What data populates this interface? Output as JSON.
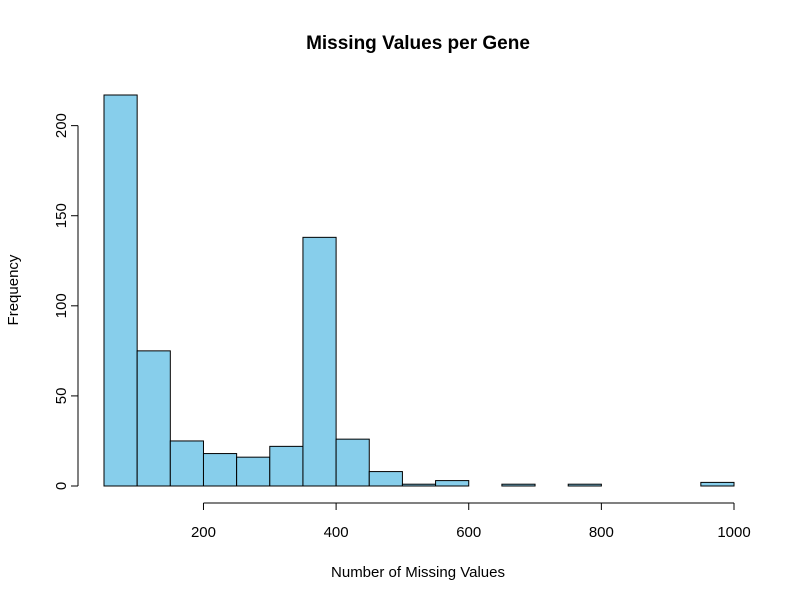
{
  "chart_data": {
    "type": "bar",
    "title": "Missing Values per Gene",
    "xlabel": "Number of Missing Values",
    "ylabel": "Frequency",
    "bar_color": "#87CEEB",
    "bin_edges": [
      50,
      100,
      150,
      200,
      250,
      300,
      350,
      400,
      450,
      500,
      550,
      600,
      650,
      700,
      750,
      800,
      850,
      900,
      950,
      1000
    ],
    "values": [
      217,
      75,
      25,
      18,
      16,
      22,
      138,
      26,
      8,
      1,
      3,
      0,
      1,
      0,
      1,
      0,
      0,
      0,
      2
    ],
    "xlim": [
      50,
      1000
    ],
    "ylim": [
      0,
      217
    ],
    "x_ticks": [
      200,
      400,
      600,
      800,
      1000
    ],
    "y_ticks": [
      0,
      50,
      100,
      150,
      200
    ],
    "x_tick_labels": [
      "200",
      "400",
      "600",
      "800",
      "1000"
    ],
    "y_tick_labels": [
      "0",
      "50",
      "100",
      "150",
      "200"
    ],
    "grid": false
  }
}
